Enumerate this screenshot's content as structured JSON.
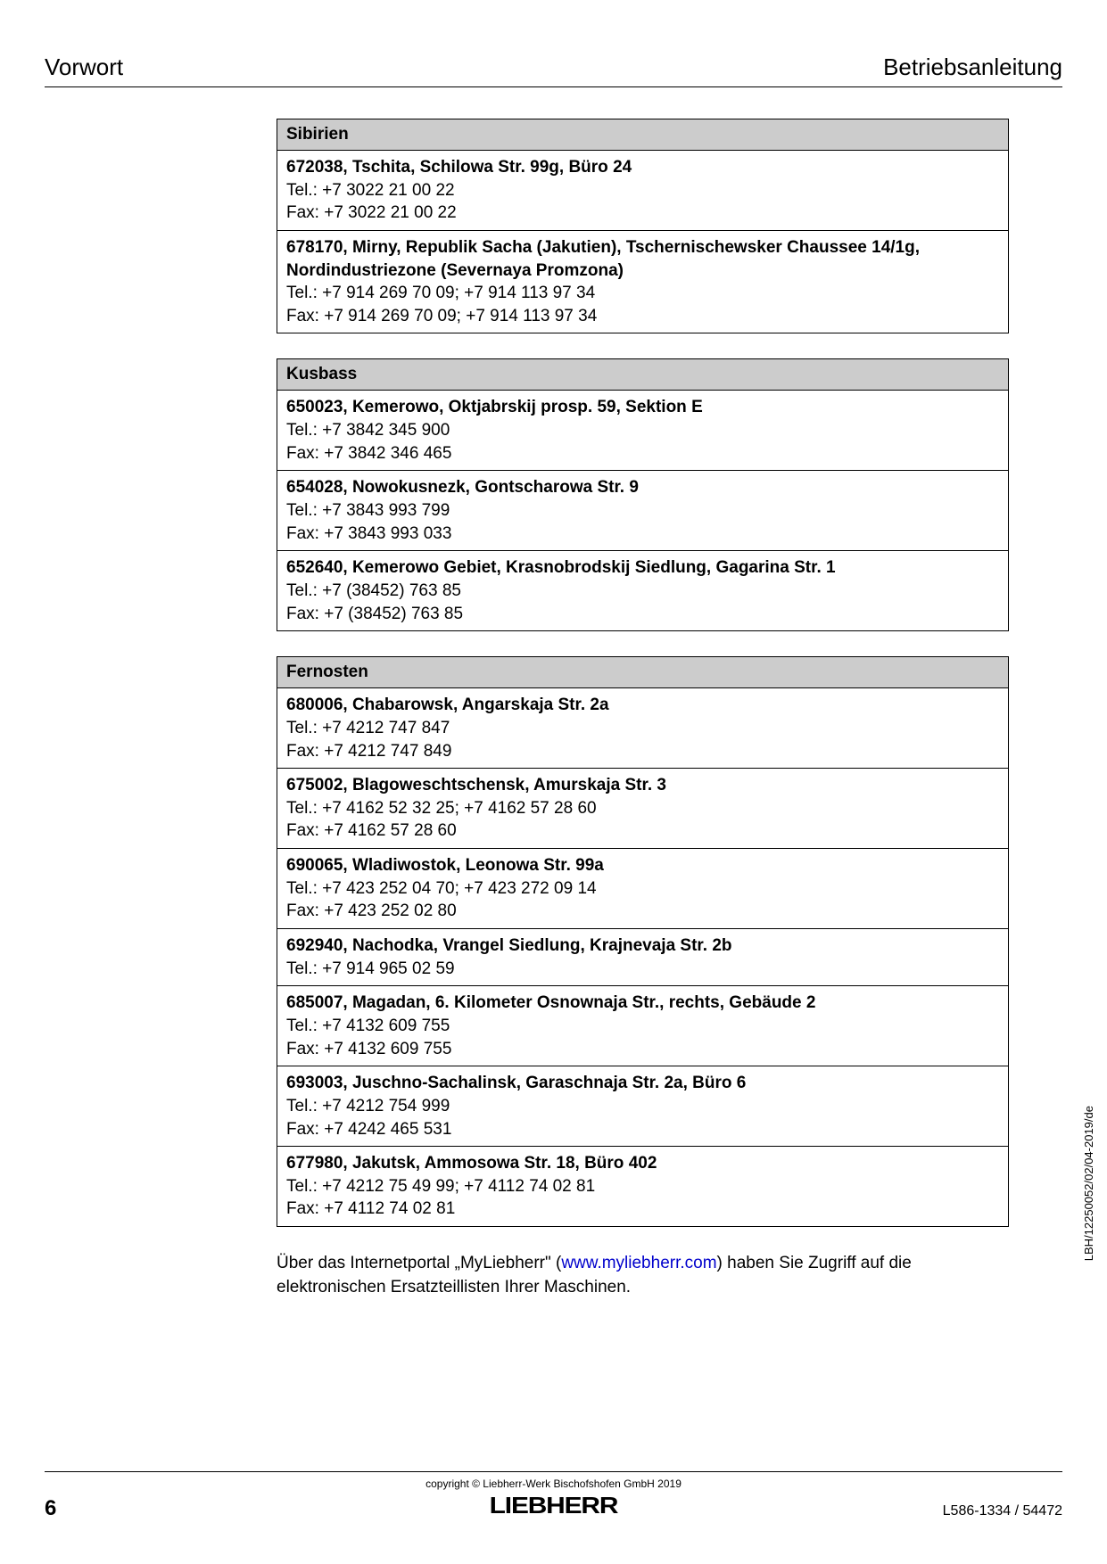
{
  "header": {
    "left": "Vorwort",
    "right": "Betriebsanleitung"
  },
  "regions": [
    {
      "name": "Sibirien",
      "entries": [
        {
          "address": "672038, Tschita, Schilowa Str. 99g, Büro 24",
          "tel": "Tel.: +7 3022 21 00 22",
          "fax": "Fax: +7 3022 21 00 22"
        },
        {
          "address": "678170, Mirny, Republik Sacha (Jakutien), Tschernischewsker Chaussee 14/1g, Nordindustriezone (Severnaya Promzona)",
          "tel": "Tel.: +7 914 269 70 09; +7 914 113 97 34",
          "fax": "Fax: +7 914 269 70 09; +7 914 113 97 34"
        }
      ]
    },
    {
      "name": "Kusbass",
      "entries": [
        {
          "address": "650023, Kemerowo, Oktjabrskij prosp. 59, Sektion E",
          "tel": "Tel.: +7 3842 345 900",
          "fax": "Fax: +7 3842 346 465"
        },
        {
          "address": "654028, Nowokusnezk, Gontscharowa Str. 9",
          "tel": "Tel.: +7 3843 993 799",
          "fax": "Fax: +7 3843 993 033"
        },
        {
          "address": "652640, Kemerowo Gebiet, Krasnobrodskij Siedlung, Gagarina Str. 1",
          "tel": "Tel.: +7 (38452) 763 85",
          "fax": "Fax: +7 (38452) 763 85"
        }
      ]
    },
    {
      "name": "Fernosten",
      "entries": [
        {
          "address": "680006, Chabarowsk, Angarskaja Str. 2a",
          "tel": "Tel.: +7 4212 747 847",
          "fax": "Fax: +7 4212 747 849"
        },
        {
          "address": "675002, Blagoweschtschensk, Amurskaja Str. 3",
          "tel": "Tel.: +7 4162 52 32 25; +7 4162 57 28 60",
          "fax": "Fax: +7 4162 57 28 60"
        },
        {
          "address": "690065, Wladiwostok, Leonowa Str. 99a",
          "tel": "Tel.: +7 423 252 04 70; +7 423 272 09 14",
          "fax": "Fax: +7 423 252 02 80"
        },
        {
          "address": "692940, Nachodka, Vrangel Siedlung, Krajnevaja Str. 2b",
          "tel": "Tel.: +7 914 965 02 59",
          "fax": ""
        },
        {
          "address": "685007, Magadan, 6. Kilometer Osnownaja Str., rechts, Gebäude 2",
          "tel": "Tel.: +7 4132 609 755",
          "fax": "Fax: +7 4132 609 755"
        },
        {
          "address": "693003, Juschno-Sachalinsk, Garaschnaja Str. 2a, Büro 6",
          "tel": "Tel.: +7 4212 754 999",
          "fax": "Fax: +7 4242 465 531"
        },
        {
          "address": "677980, Jakutsk, Ammosowa Str. 18, Büro 402",
          "tel": "Tel.: +7 4212 75 49 99; +7 4112 74 02 81",
          "fax": "Fax: +7 4112 74 02 81"
        }
      ]
    }
  ],
  "footer_note": {
    "prefix": "Über das Internetportal „MyLiebherr\" (",
    "link": "www.myliebherr.com",
    "suffix": ") haben Sie Zugriff auf die elektronischen Ersatzteillisten Ihrer Maschinen."
  },
  "side_code": "LBH/12250052/02/04-2019/de",
  "copyright": "copyright © Liebherr-Werk Bischofshofen GmbH 2019",
  "logo": "LIEBHERR",
  "page_number": "6",
  "doc_id": "L586-1334 / 54472"
}
